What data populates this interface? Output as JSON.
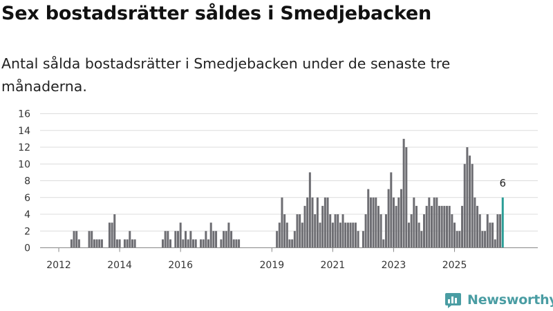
{
  "title": "Sex bostadsrätter såldes i Smedjebacken",
  "subtitle": "Antal sålda bostadsrätter i Smedjebacken under de senaste tre månaderna.",
  "brand": {
    "name": "Newsworthy",
    "logo_icon": "newsworthy-logo-icon"
  },
  "colors": {
    "bar": "#6d6d72",
    "highlight": "#2a9d96",
    "grid": "#dcdcdc",
    "axis": "#888888",
    "brand": "#4a9da3"
  },
  "chart_data": {
    "type": "bar",
    "title": "",
    "xlabel": "",
    "ylabel": "",
    "ylim": [
      0,
      16
    ],
    "yticks": [
      0,
      2,
      4,
      6,
      8,
      10,
      12,
      14,
      16
    ],
    "x_ticks": [
      "2012",
      "2014",
      "2016",
      "2019",
      "2021",
      "2023",
      "2025"
    ],
    "grid": true,
    "legend": "none",
    "start_month": "2011-07",
    "monthly_values": [
      0,
      0,
      0,
      0,
      0,
      0,
      0,
      0,
      0,
      0,
      0,
      1,
      2,
      2,
      1,
      0,
      0,
      0,
      2,
      2,
      1,
      1,
      1,
      1,
      0,
      0,
      3,
      3,
      4,
      1,
      1,
      0,
      1,
      1,
      2,
      1,
      1,
      0,
      0,
      0,
      0,
      0,
      0,
      0,
      0,
      0,
      0,
      1,
      2,
      2,
      1,
      0,
      2,
      2,
      3,
      1,
      2,
      1,
      2,
      1,
      1,
      0,
      1,
      1,
      2,
      1,
      3,
      2,
      2,
      0,
      1,
      2,
      2,
      3,
      2,
      1,
      1,
      1,
      0,
      0,
      0,
      0,
      0,
      0,
      0,
      0,
      0,
      0,
      0,
      0,
      0,
      0,
      2,
      3,
      6,
      4,
      3,
      1,
      1,
      2,
      4,
      4,
      3,
      5,
      6,
      9,
      6,
      4,
      6,
      3,
      5,
      6,
      6,
      4,
      3,
      4,
      4,
      3,
      4,
      3,
      3,
      3,
      3,
      3,
      2,
      0,
      2,
      4,
      7,
      6,
      6,
      6,
      5,
      4,
      1,
      4,
      7,
      9,
      6,
      5,
      6,
      7,
      13,
      12,
      3,
      4,
      6,
      5,
      3,
      2,
      4,
      5,
      6,
      5,
      6,
      6,
      5,
      5,
      5,
      5,
      5,
      4,
      3,
      2,
      2,
      5,
      10,
      12,
      11,
      10,
      6,
      5,
      4,
      2,
      2,
      4,
      3,
      3,
      1,
      4,
      4,
      6
    ],
    "highlight_last": true,
    "data_label": "6"
  }
}
